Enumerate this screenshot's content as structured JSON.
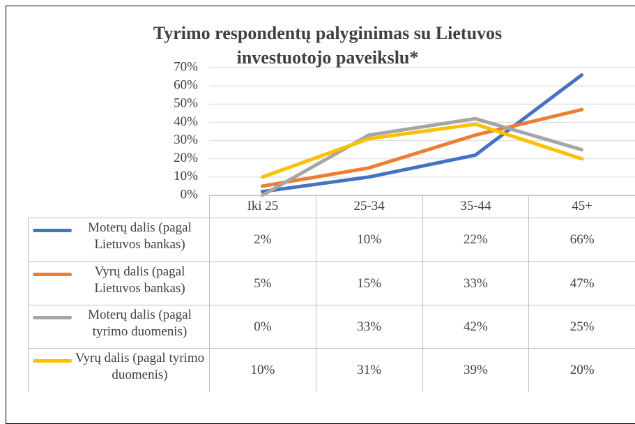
{
  "chart_data": {
    "type": "line",
    "title": "Tyrimo respondentų palyginimas su Lietuvos investuotojo paveikslu*",
    "categories": [
      "Iki 25",
      "25-34",
      "35-44",
      "45+"
    ],
    "ylim": [
      0,
      70
    ],
    "yticks": [
      {
        "value": 0,
        "label": "0%"
      },
      {
        "value": 10,
        "label": "10%"
      },
      {
        "value": 20,
        "label": "20%"
      },
      {
        "value": 30,
        "label": "30%"
      },
      {
        "value": 40,
        "label": "40%"
      },
      {
        "value": 50,
        "label": "50%"
      },
      {
        "value": 60,
        "label": "60%"
      },
      {
        "value": 70,
        "label": "70%"
      }
    ],
    "grid": true,
    "series": [
      {
        "name": "Moterų dalis (pagal Lietuvos bankas)",
        "color": "#4472c4",
        "values": [
          2,
          10,
          22,
          66
        ],
        "value_labels": [
          "2%",
          "10%",
          "22%",
          "66%"
        ]
      },
      {
        "name": "Vyrų dalis (pagal Lietuvos bankas)",
        "color": "#ed7d31",
        "values": [
          5,
          15,
          33,
          47
        ],
        "value_labels": [
          "5%",
          "15%",
          "33%",
          "47%"
        ]
      },
      {
        "name": "Moterų dalis (pagal tyrimo duomenis)",
        "color": "#a5a5a5",
        "values": [
          0,
          33,
          42,
          25
        ],
        "value_labels": [
          "0%",
          "33%",
          "42%",
          "25%"
        ]
      },
      {
        "name": "Vyrų dalis (pagal tyrimo duomenis)",
        "color": "#ffc000",
        "values": [
          10,
          31,
          39,
          20
        ],
        "value_labels": [
          "10%",
          "31%",
          "39%",
          "20%"
        ]
      }
    ]
  }
}
